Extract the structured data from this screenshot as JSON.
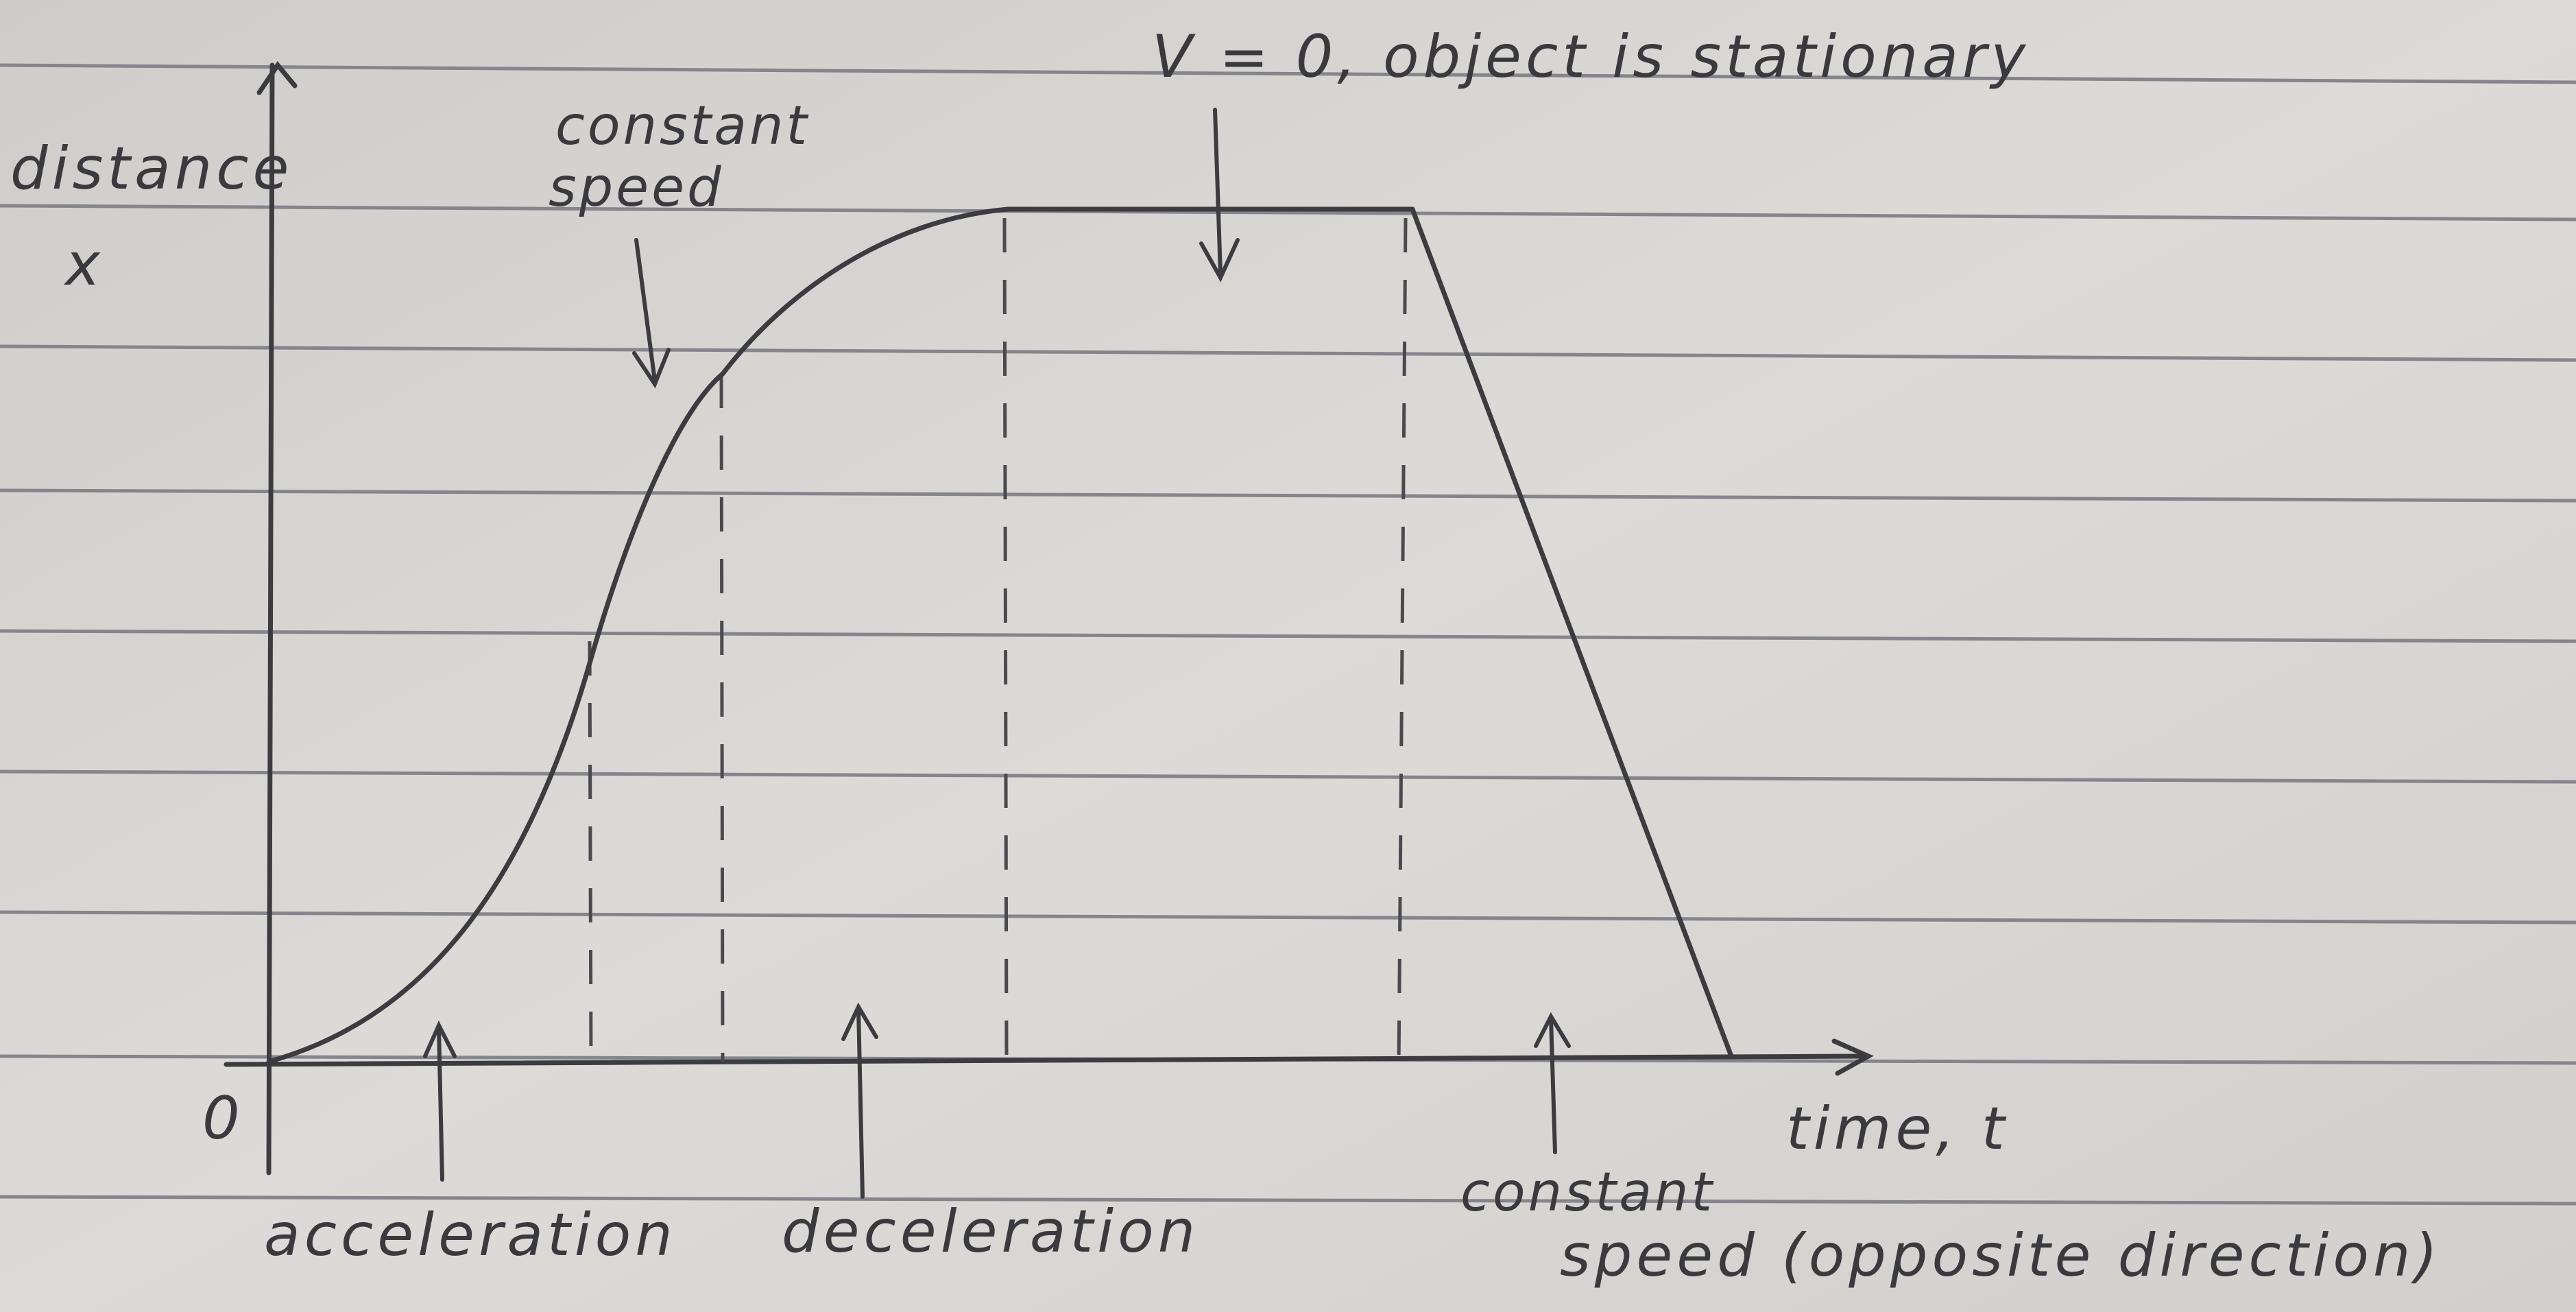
{
  "paper": {
    "background": "#d6d4d1",
    "rule_color": "#8a8a90",
    "ink_color": "#3c3c40"
  },
  "axes": {
    "y_label_line1": "distance",
    "y_label_line2": "x",
    "x_label": "time, t",
    "origin_label": "0"
  },
  "annotations": {
    "stationary": "V = 0, object is stationary",
    "constant_speed_line1": "constant",
    "constant_speed_line2": "speed",
    "acceleration": "acceleration",
    "deceleration": "deceleration",
    "constant_speed_opposite_line1": "constant",
    "constant_speed_opposite_line2": "speed (opposite direction)"
  }
}
